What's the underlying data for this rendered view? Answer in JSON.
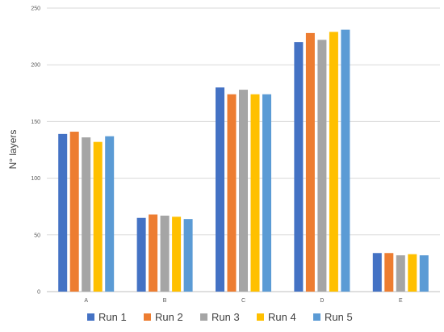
{
  "chart_data": {
    "type": "bar",
    "ylabel": "N° layers",
    "xlabel": "",
    "ylim": [
      0,
      250
    ],
    "yticks": [
      0,
      50,
      100,
      150,
      200,
      250
    ],
    "grid": true,
    "legend_position": "bottom",
    "categories": [
      "A",
      "B",
      "C",
      "D",
      "E"
    ],
    "series": [
      {
        "name": "Run 1",
        "color": "#4472C4",
        "values": [
          139,
          65,
          180,
          220,
          34
        ]
      },
      {
        "name": "Run 2",
        "color": "#ED7D31",
        "values": [
          141,
          68,
          174,
          228,
          34
        ]
      },
      {
        "name": "Run 3",
        "color": "#A5A5A5",
        "values": [
          136,
          67,
          178,
          222,
          32
        ]
      },
      {
        "name": "Run 4",
        "color": "#FFC000",
        "values": [
          132,
          66,
          174,
          229,
          33
        ]
      },
      {
        "name": "Run 5",
        "color": "#5B9BD5",
        "values": [
          137,
          64,
          174,
          231,
          32
        ]
      }
    ]
  }
}
